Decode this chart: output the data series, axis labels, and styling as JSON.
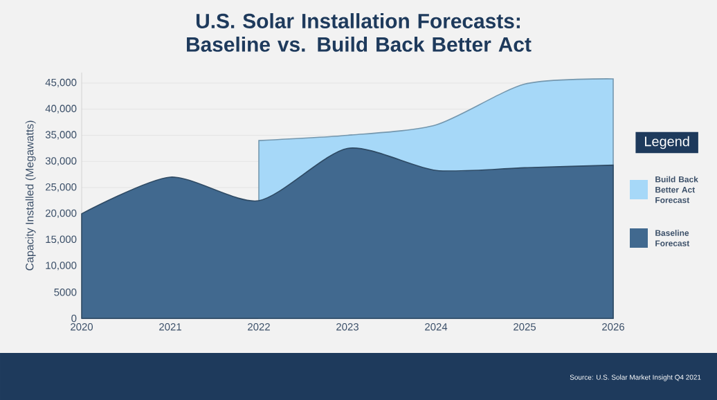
{
  "chart_data": {
    "type": "area",
    "title": "U.S. Solar Installation Forecasts: Baseline vs. Build Back Better Act",
    "ylabel": "Capacity Installed (Megawatts)",
    "legend_title": "Legend",
    "legend": "right",
    "grid": "y",
    "categories": [
      "2020",
      "2021",
      "2022",
      "2023",
      "2024",
      "2025",
      "2026"
    ],
    "ylim": [
      0,
      47000
    ],
    "yticks": [
      0,
      5000,
      {
        "value": 10000,
        "label": "10,000"
      },
      {
        "value": 15000,
        "label": "15,000"
      },
      {
        "value": 20000,
        "label": "20,000"
      },
      {
        "value": 25000,
        "label": "25,000"
      },
      {
        "value": 30000,
        "label": "30,000"
      },
      {
        "value": 35000,
        "label": "35,000"
      },
      {
        "value": 40000,
        "label": "40,000"
      },
      {
        "value": 45000,
        "label": "45,000"
      }
    ],
    "series": [
      {
        "name": "Build Back Better Act Forecast",
        "color": "#a6d8f8",
        "values": [
          null,
          null,
          34000,
          35000,
          37000,
          44800,
          45800
        ]
      },
      {
        "name": "Baseline Forecast",
        "color": "#41698f",
        "values": [
          20000,
          27000,
          22500,
          32500,
          28300,
          28800,
          29300
        ]
      }
    ],
    "annotations": [
      "Source: U.S. Solar Market Insight Q4 2021"
    ]
  }
}
